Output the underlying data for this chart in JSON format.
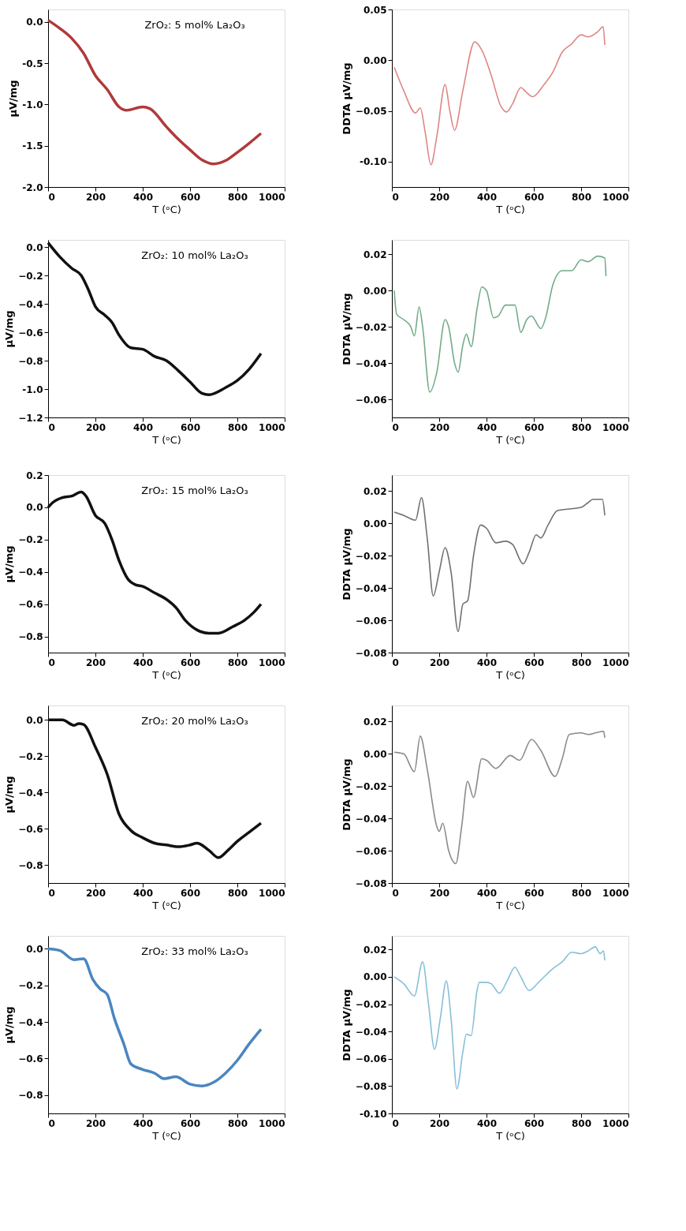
{
  "chart_data": [
    {
      "type": "line",
      "xlabel": "T (ᵒC)",
      "ylabel": "μV/mg",
      "annotations": [
        "ZrO₂: 5 mol% La₂O₃"
      ],
      "grid": false,
      "xlim": [
        0,
        1000
      ],
      "xticks": [
        0,
        200,
        400,
        600,
        800,
        1000
      ],
      "ylim": [
        -2.0,
        0.15
      ],
      "yticks": [
        {
          "value": 0,
          "label": "0.0"
        },
        {
          "value": -0.5,
          "label": "-0.5"
        },
        {
          "value": -1.0,
          "label": "-1.0"
        },
        {
          "value": -1.5,
          "label": "-1.5"
        },
        {
          "value": -2.0,
          "label": "-2.0"
        }
      ],
      "x": [
        0,
        50,
        100,
        150,
        200,
        250,
        300,
        330,
        400,
        430,
        500,
        550,
        600,
        650,
        700,
        750,
        800,
        850,
        900
      ],
      "series": [
        {
          "color": "#b03a3a",
          "values": [
            0.02,
            -0.08,
            -0.2,
            -0.38,
            -0.65,
            -0.82,
            -1.03,
            -1.07,
            -1.03,
            -1.05,
            -1.27,
            -1.42,
            -1.55,
            -1.67,
            -1.72,
            -1.68,
            -1.58,
            -1.47,
            -1.35
          ]
        }
      ]
    },
    {
      "type": "line",
      "xlabel": "T (ᵒC)",
      "ylabel": "DDTA  μV/mg",
      "grid": false,
      "xlim": [
        0,
        1000
      ],
      "xticks": [
        0,
        200,
        400,
        600,
        800,
        1000
      ],
      "ylim": [
        -0.125,
        0.05
      ],
      "yticks": [
        0.05,
        {
          "value": 0,
          "label": "0.00"
        },
        -0.05,
        {
          "value": -0.1,
          "label": "-0.10"
        }
      ],
      "x": [
        10,
        50,
        100,
        120,
        140,
        165,
        190,
        225,
        245,
        265,
        300,
        350,
        380,
        420,
        460,
        485,
        510,
        545,
        570,
        595,
        640,
        680,
        720,
        760,
        800,
        830,
        870,
        893,
        900
      ],
      "series": [
        {
          "color": "#e08585",
          "values": [
            -0.007,
            -0.03,
            -0.052,
            -0.047,
            -0.07,
            -0.103,
            -0.075,
            -0.024,
            -0.05,
            -0.069,
            -0.03,
            0.018,
            0.01,
            -0.015,
            -0.045,
            -0.051,
            -0.043,
            -0.027,
            -0.032,
            -0.036,
            -0.025,
            -0.012,
            0.008,
            0.016,
            0.025,
            0.023,
            0.028,
            0.033,
            0.015
          ]
        }
      ]
    },
    {
      "type": "line",
      "xlabel": "T (ᵒC)",
      "ylabel": "μV/mg",
      "annotations": [
        "ZrO₂: 10 mol% La₂O₃"
      ],
      "grid": false,
      "xlim": [
        0,
        1000
      ],
      "xticks": [
        0,
        200,
        400,
        600,
        800,
        1000
      ],
      "ylim": [
        -1.2,
        0.05
      ],
      "yticks": [
        {
          "value": 0,
          "label": "0.0"
        },
        -0.2,
        -0.4,
        -0.6,
        -0.8,
        {
          "value": -1.0,
          "label": "-1.0"
        },
        -1.2
      ],
      "x": [
        0,
        50,
        100,
        140,
        170,
        200,
        240,
        270,
        300,
        350,
        400,
        450,
        500,
        550,
        600,
        650,
        680,
        750,
        800,
        850,
        900
      ],
      "series": [
        {
          "color": "#111111",
          "values": [
            0.03,
            -0.07,
            -0.15,
            -0.2,
            -0.3,
            -0.42,
            -0.48,
            -0.53,
            -0.62,
            -0.71,
            -0.72,
            -0.77,
            -0.8,
            -0.87,
            -0.95,
            -1.03,
            -1.04,
            -0.99,
            -0.94,
            -0.86,
            -0.75
          ]
        }
      ]
    },
    {
      "type": "line",
      "xlabel": "T (ᵒC)",
      "ylabel": "DDTA  μV/mg",
      "grid": false,
      "xlim": [
        0,
        1000
      ],
      "xticks": [
        0,
        200,
        400,
        600,
        800,
        1000
      ],
      "ylim": [
        -0.07,
        0.028
      ],
      "yticks": [
        0.02,
        {
          "value": 0,
          "label": "0.00"
        },
        -0.02,
        -0.04,
        -0.06
      ],
      "x": [
        10,
        20,
        50,
        80,
        95,
        115,
        130,
        160,
        190,
        225,
        240,
        265,
        280,
        300,
        315,
        335,
        360,
        380,
        400,
        430,
        450,
        480,
        520,
        545,
        570,
        590,
        630,
        650,
        680,
        720,
        760,
        800,
        830,
        870,
        900,
        905
      ],
      "series": [
        {
          "color": "#72ab88",
          "values": [
            0.0,
            -0.013,
            -0.016,
            -0.02,
            -0.025,
            -0.009,
            -0.02,
            -0.056,
            -0.045,
            -0.016,
            -0.02,
            -0.04,
            -0.045,
            -0.03,
            -0.024,
            -0.031,
            -0.01,
            0.002,
            0.0,
            -0.015,
            -0.014,
            -0.008,
            -0.008,
            -0.023,
            -0.016,
            -0.014,
            -0.021,
            -0.015,
            0.003,
            0.011,
            0.011,
            0.017,
            0.016,
            0.019,
            0.018,
            0.008
          ]
        }
      ]
    },
    {
      "type": "line",
      "xlabel": "T (ᵒC)",
      "ylabel": "μV/mg",
      "annotations": [
        "ZrO₂: 15 mol% La₂O₃"
      ],
      "grid": false,
      "xlim": [
        0,
        1000
      ],
      "xticks": [
        0,
        200,
        400,
        600,
        800,
        1000
      ],
      "ylim": [
        -0.9,
        0.2
      ],
      "yticks": [
        0.2,
        {
          "value": 0,
          "label": "0.0"
        },
        -0.2,
        -0.4,
        -0.6,
        -0.8
      ],
      "x": [
        0,
        20,
        60,
        100,
        140,
        160,
        200,
        240,
        270,
        300,
        340,
        370,
        400,
        450,
        500,
        540,
        580,
        630,
        680,
        720,
        780,
        830,
        870,
        900
      ],
      "series": [
        {
          "color": "#111111",
          "values": [
            0.0,
            0.03,
            0.06,
            0.07,
            0.095,
            0.07,
            -0.05,
            -0.1,
            -0.2,
            -0.33,
            -0.45,
            -0.48,
            -0.49,
            -0.53,
            -0.57,
            -0.62,
            -0.7,
            -0.76,
            -0.78,
            -0.78,
            -0.74,
            -0.7,
            -0.65,
            -0.6
          ]
        }
      ]
    },
    {
      "type": "line",
      "xlabel": "T (ᵒC)",
      "ylabel": "DDTA  μV/mg",
      "grid": false,
      "xlim": [
        0,
        1000
      ],
      "xticks": [
        0,
        200,
        400,
        600,
        800,
        1000
      ],
      "ylim": [
        -0.08,
        0.03
      ],
      "yticks": [
        0.02,
        {
          "value": 0,
          "label": "0.00"
        },
        -0.02,
        -0.04,
        -0.06,
        -0.08
      ],
      "x": [
        10,
        50,
        100,
        125,
        150,
        175,
        200,
        225,
        250,
        280,
        300,
        320,
        345,
        375,
        400,
        440,
        480,
        510,
        555,
        580,
        610,
        630,
        660,
        700,
        750,
        800,
        830,
        850,
        890,
        900
      ],
      "series": [
        {
          "color": "#707070",
          "values": [
            0.007,
            0.005,
            0.002,
            0.016,
            -0.01,
            -0.045,
            -0.03,
            -0.015,
            -0.03,
            -0.067,
            -0.05,
            -0.048,
            -0.02,
            -0.001,
            -0.003,
            -0.012,
            -0.011,
            -0.013,
            -0.025,
            -0.018,
            -0.007,
            -0.009,
            -0.001,
            0.008,
            0.009,
            0.01,
            0.013,
            0.015,
            0.015,
            0.005
          ]
        }
      ]
    },
    {
      "type": "line",
      "xlabel": "T (ᵒC)",
      "ylabel": "μV/mg",
      "annotations": [
        "ZrO₂: 20 mol% La₂O₃"
      ],
      "grid": false,
      "xlim": [
        0,
        1000
      ],
      "xticks": [
        0,
        200,
        400,
        600,
        800,
        1000
      ],
      "ylim": [
        -0.9,
        0.08
      ],
      "yticks": [
        {
          "value": 0,
          "label": "0.0"
        },
        -0.2,
        -0.4,
        -0.6,
        -0.8
      ],
      "x": [
        0,
        60,
        110,
        130,
        150,
        200,
        250,
        300,
        350,
        400,
        450,
        500,
        550,
        600,
        630,
        680,
        720,
        760,
        800,
        850,
        900
      ],
      "series": [
        {
          "color": "#111111",
          "values": [
            0.0,
            0.0,
            -0.03,
            -0.02,
            -0.025,
            -0.15,
            -0.3,
            -0.52,
            -0.61,
            -0.65,
            -0.68,
            -0.69,
            -0.7,
            -0.69,
            -0.68,
            -0.72,
            -0.76,
            -0.72,
            -0.67,
            -0.62,
            -0.57
          ]
        }
      ]
    },
    {
      "type": "line",
      "xlabel": "T (ᵒC)",
      "ylabel": "DDTA  μV/mg",
      "grid": false,
      "xlim": [
        0,
        1000
      ],
      "xticks": [
        0,
        200,
        400,
        600,
        800,
        1000
      ],
      "ylim": [
        -0.08,
        0.03
      ],
      "yticks": [
        0.02,
        {
          "value": 0,
          "label": "0.00"
        },
        -0.02,
        -0.04,
        -0.06,
        -0.08
      ],
      "x": [
        10,
        50,
        95,
        120,
        150,
        190,
        200,
        215,
        240,
        270,
        295,
        320,
        345,
        380,
        400,
        440,
        500,
        540,
        590,
        630,
        690,
        720,
        750,
        800,
        830,
        860,
        895,
        900
      ],
      "series": [
        {
          "color": "#8a8a8a",
          "values": [
            0.001,
            0.0,
            -0.011,
            0.011,
            -0.01,
            -0.045,
            -0.048,
            -0.043,
            -0.06,
            -0.068,
            -0.045,
            -0.017,
            -0.027,
            -0.003,
            -0.004,
            -0.009,
            -0.001,
            -0.004,
            0.009,
            0.002,
            -0.014,
            -0.003,
            0.012,
            0.013,
            0.012,
            0.013,
            0.014,
            0.01
          ]
        }
      ]
    },
    {
      "type": "line",
      "xlabel": "T (ᵒC)",
      "ylabel": "μV/mg",
      "annotations": [
        "ZrO₂: 33 mol% La₂O₃"
      ],
      "grid": false,
      "xlim": [
        0,
        1000
      ],
      "xticks": [
        0,
        200,
        400,
        600,
        800,
        1000
      ],
      "ylim": [
        -0.9,
        0.07
      ],
      "yticks": [
        {
          "value": 0,
          "label": "0.0"
        },
        -0.2,
        -0.4,
        -0.6,
        -0.8
      ],
      "x": [
        0,
        50,
        110,
        150,
        190,
        220,
        250,
        280,
        320,
        350,
        400,
        450,
        490,
        540,
        600,
        650,
        700,
        750,
        800,
        850,
        900
      ],
      "series": [
        {
          "color": "#4a86c0",
          "values": [
            0.0,
            -0.01,
            -0.06,
            -0.055,
            -0.17,
            -0.22,
            -0.25,
            -0.38,
            -0.52,
            -0.63,
            -0.66,
            -0.68,
            -0.71,
            -0.7,
            -0.74,
            -0.75,
            -0.73,
            -0.68,
            -0.61,
            -0.52,
            -0.44
          ]
        }
      ]
    },
    {
      "type": "line",
      "xlabel": "T (ᵒC)",
      "ylabel": "DDTA  μV/mg",
      "grid": false,
      "xlim": [
        0,
        1000
      ],
      "xticks": [
        0,
        200,
        400,
        600,
        800,
        1000
      ],
      "ylim": [
        -0.1,
        0.03
      ],
      "yticks": [
        0.02,
        {
          "value": 0,
          "label": "0.00"
        },
        -0.02,
        -0.04,
        -0.06,
        -0.08,
        {
          "value": -0.1,
          "label": "-0.10"
        }
      ],
      "x": [
        10,
        50,
        95,
        130,
        155,
        180,
        205,
        230,
        250,
        275,
        300,
        315,
        335,
        360,
        370,
        400,
        420,
        455,
        490,
        520,
        545,
        580,
        620,
        680,
        720,
        760,
        800,
        830,
        860,
        880,
        895,
        900
      ],
      "series": [
        {
          "color": "#86bfd8",
          "values": [
            0.0,
            -0.005,
            -0.014,
            0.011,
            -0.02,
            -0.053,
            -0.03,
            -0.003,
            -0.03,
            -0.082,
            -0.055,
            -0.042,
            -0.043,
            -0.01,
            -0.004,
            -0.004,
            -0.005,
            -0.012,
            -0.002,
            0.007,
            0.0,
            -0.01,
            -0.004,
            0.006,
            0.011,
            0.018,
            0.017,
            0.019,
            0.022,
            0.017,
            0.019,
            0.012
          ]
        }
      ]
    }
  ]
}
